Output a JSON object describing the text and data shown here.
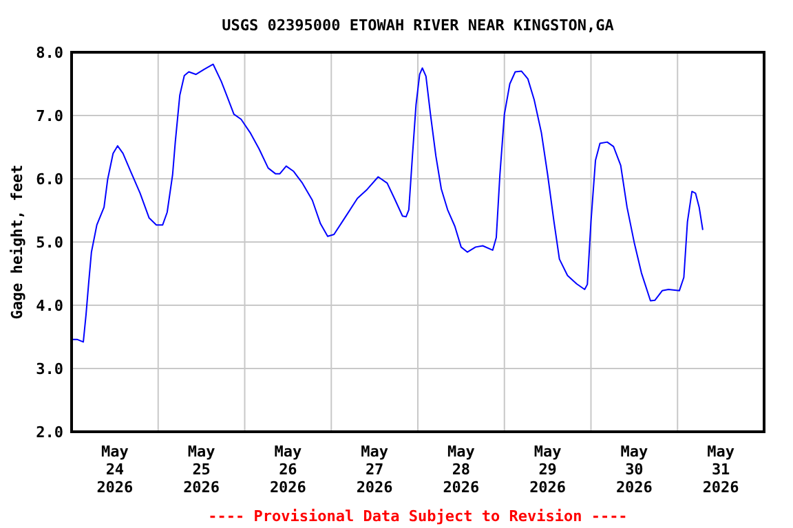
{
  "chart_data": {
    "type": "line",
    "title": "USGS 02395000 ETOWAH RIVER NEAR KINGSTON,GA",
    "ylabel": "Gage height, feet",
    "annotations": [
      "---- Provisional Data Subject to Revision ----"
    ],
    "xlim": [
      "2026-05-24T00:00",
      "2026-06-01T00:00"
    ],
    "xticks": [
      {
        "value": "2026-05-24T00:00",
        "label": null
      },
      {
        "value": "2026-05-24T12:00",
        "label": "May\n24\n2026"
      },
      {
        "value": "2026-05-25T00:00",
        "label": null
      },
      {
        "value": "2026-05-25T12:00",
        "label": "May\n25\n2026"
      },
      {
        "value": "2026-05-26T00:00",
        "label": null
      },
      {
        "value": "2026-05-26T12:00",
        "label": "May\n26\n2026"
      },
      {
        "value": "2026-05-27T00:00",
        "label": null
      },
      {
        "value": "2026-05-27T12:00",
        "label": "May\n27\n2026"
      },
      {
        "value": "2026-05-28T00:00",
        "label": null
      },
      {
        "value": "2026-05-28T12:00",
        "label": "May\n28\n2026"
      },
      {
        "value": "2026-05-29T00:00",
        "label": null
      },
      {
        "value": "2026-05-29T12:00",
        "label": "May\n29\n2026"
      },
      {
        "value": "2026-05-30T00:00",
        "label": null
      },
      {
        "value": "2026-05-30T12:00",
        "label": "May\n30\n2026"
      },
      {
        "value": "2026-05-31T00:00",
        "label": null
      },
      {
        "value": "2026-05-31T12:00",
        "label": "May\n31\n2026"
      },
      {
        "value": "2026-06-01T00:00",
        "label": null
      }
    ],
    "ylim": [
      2,
      8
    ],
    "yticks": [
      {
        "value": 2,
        "label": "2.0"
      },
      {
        "value": 3,
        "label": "3.0"
      },
      {
        "value": 4,
        "label": "4.0"
      },
      {
        "value": 5,
        "label": "5.0"
      },
      {
        "value": 6,
        "label": "6.0"
      },
      {
        "value": 7,
        "label": "7.0"
      },
      {
        "value": 8,
        "label": "8.0"
      }
    ],
    "grid": true,
    "marker": "none",
    "line_style": "solid",
    "series": [
      {
        "color": "#0000ff",
        "x": [
          "2026-05-24T00:00",
          "2026-05-24T01:30",
          "2026-05-24T03:15",
          "2026-05-24T04:00",
          "2026-05-24T04:45",
          "2026-05-24T05:30",
          "2026-05-24T07:00",
          "2026-05-24T09:00",
          "2026-05-24T10:00",
          "2026-05-24T11:30",
          "2026-05-24T12:45",
          "2026-05-24T14:15",
          "2026-05-24T16:30",
          "2026-05-24T19:00",
          "2026-05-24T21:30",
          "2026-05-24T23:30",
          "2026-05-25T01:15",
          "2026-05-25T02:30",
          "2026-05-25T04:00",
          "2026-05-25T04:45",
          "2026-05-25T06:00",
          "2026-05-25T07:15",
          "2026-05-25T08:30",
          "2026-05-25T10:30",
          "2026-05-25T12:45",
          "2026-05-25T15:15",
          "2026-05-25T17:30",
          "2026-05-25T19:00",
          "2026-05-25T21:00",
          "2026-05-25T23:00",
          "2026-05-26T01:30",
          "2026-05-26T04:00",
          "2026-05-26T06:30",
          "2026-05-26T08:30",
          "2026-05-26T09:45",
          "2026-05-26T11:30",
          "2026-05-26T13:30",
          "2026-05-26T16:00",
          "2026-05-26T18:45",
          "2026-05-26T21:00",
          "2026-05-26T23:00",
          "2026-05-27T00:45",
          "2026-05-27T03:30",
          "2026-05-27T07:15",
          "2026-05-27T09:45",
          "2026-05-27T13:00",
          "2026-05-27T15:30",
          "2026-05-27T17:30",
          "2026-05-27T19:45",
          "2026-05-27T20:45",
          "2026-05-27T21:30",
          "2026-05-27T22:30",
          "2026-05-27T23:30",
          "2026-05-28T00:30",
          "2026-05-28T01:15",
          "2026-05-28T02:15",
          "2026-05-28T03:30",
          "2026-05-28T05:00",
          "2026-05-28T06:30",
          "2026-05-28T08:15",
          "2026-05-28T10:15",
          "2026-05-28T12:00",
          "2026-05-28T13:45",
          "2026-05-28T16:00",
          "2026-05-28T18:00",
          "2026-05-28T20:45",
          "2026-05-28T21:45",
          "2026-05-28T22:45",
          "2026-05-29T00:00",
          "2026-05-29T01:30",
          "2026-05-29T03:00",
          "2026-05-29T04:45",
          "2026-05-29T06:30",
          "2026-05-29T08:15",
          "2026-05-29T10:15",
          "2026-05-29T12:00",
          "2026-05-29T13:45",
          "2026-05-29T15:15",
          "2026-05-29T17:30",
          "2026-05-29T20:00",
          "2026-05-29T22:15",
          "2026-05-29T23:00",
          "2026-05-30T00:00",
          "2026-05-30T01:15",
          "2026-05-30T02:30",
          "2026-05-30T04:30",
          "2026-05-30T06:15",
          "2026-05-30T08:15",
          "2026-05-30T10:00",
          "2026-05-30T12:00",
          "2026-05-30T14:00",
          "2026-05-30T16:30",
          "2026-05-30T17:45",
          "2026-05-30T19:45",
          "2026-05-30T21:30",
          "2026-05-31T00:30",
          "2026-05-31T01:45",
          "2026-05-31T02:45",
          "2026-05-31T04:00",
          "2026-05-31T05:00",
          "2026-05-31T06:00",
          "2026-05-31T07:00"
        ],
        "values": [
          3.46,
          3.46,
          3.42,
          3.85,
          4.36,
          4.84,
          5.27,
          5.55,
          5.99,
          6.4,
          6.52,
          6.4,
          6.1,
          5.77,
          5.38,
          5.27,
          5.27,
          5.47,
          6.06,
          6.58,
          7.32,
          7.63,
          7.69,
          7.65,
          7.73,
          7.81,
          7.54,
          7.32,
          7.02,
          6.94,
          6.73,
          6.47,
          6.17,
          6.08,
          6.08,
          6.2,
          6.12,
          5.93,
          5.66,
          5.29,
          5.09,
          5.12,
          5.36,
          5.69,
          5.82,
          6.03,
          5.93,
          5.69,
          5.41,
          5.4,
          5.51,
          6.36,
          7.17,
          7.65,
          7.75,
          7.62,
          7.02,
          6.36,
          5.84,
          5.51,
          5.25,
          4.92,
          4.84,
          4.92,
          4.94,
          4.87,
          5.07,
          6.06,
          7.02,
          7.5,
          7.69,
          7.7,
          7.58,
          7.25,
          6.73,
          6.06,
          5.32,
          4.73,
          4.47,
          4.34,
          4.25,
          4.33,
          5.32,
          6.29,
          6.56,
          6.58,
          6.51,
          6.21,
          5.55,
          4.99,
          4.51,
          4.07,
          4.08,
          4.23,
          4.25,
          4.23,
          4.44,
          5.32,
          5.8,
          5.77,
          5.55,
          5.19
        ]
      }
    ]
  }
}
